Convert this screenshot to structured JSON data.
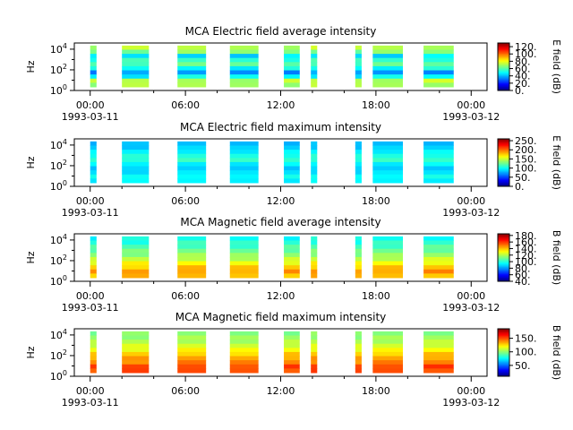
{
  "chart_data": [
    {
      "type": "heatmap",
      "title": "MCA  Electric field average intensity",
      "ylabel": "Hz",
      "y_ticks": [
        {
          "base": "10",
          "exp": "0"
        },
        {
          "base": "10",
          "exp": "2"
        },
        {
          "base": "10",
          "exp": "4"
        }
      ],
      "y_log_range": [
        0,
        4.6
      ],
      "x_range_hours": [
        -1,
        25
      ],
      "x_ticks": [
        {
          "hours": 0,
          "label": "00:00",
          "date": "1993-03-11"
        },
        {
          "hours": 6,
          "label": "06:00",
          "date": ""
        },
        {
          "hours": 12,
          "label": "12:00",
          "date": ""
        },
        {
          "hours": 18,
          "label": "18:00",
          "date": ""
        },
        {
          "hours": 24,
          "label": "00:00",
          "date": "1993-03-12"
        }
      ],
      "colorbar": {
        "label": "E field (dB)",
        "range": [
          0,
          130
        ],
        "ticks": [
          0,
          20,
          40,
          60,
          80,
          100,
          120
        ],
        "tick_labels": [
          "0.",
          "20.",
          "40.",
          "60.",
          "80.",
          "100.",
          "120."
        ]
      },
      "segments_hours": [
        [
          0.0,
          0.4
        ],
        [
          2.0,
          3.7
        ],
        [
          5.5,
          7.3
        ],
        [
          8.8,
          10.6
        ],
        [
          12.2,
          13.2
        ],
        [
          13.9,
          14.3
        ],
        [
          16.7,
          17.1
        ],
        [
          17.8,
          19.7
        ],
        [
          21.0,
          22.9
        ]
      ],
      "band_db": [
        70,
        72,
        48,
        35,
        50,
        60,
        55,
        45,
        65,
        72
      ],
      "dense_band_levels": 10
    },
    {
      "type": "heatmap",
      "title": "MCA  Electric field maximum intensity",
      "ylabel": "Hz",
      "y_ticks": [
        {
          "base": "10",
          "exp": "0"
        },
        {
          "base": "10",
          "exp": "2"
        },
        {
          "base": "10",
          "exp": "4"
        }
      ],
      "y_log_range": [
        0,
        4.6
      ],
      "x_range_hours": [
        -1,
        25
      ],
      "x_ticks": [
        {
          "hours": 0,
          "label": "00:00",
          "date": "1993-03-11"
        },
        {
          "hours": 6,
          "label": "06:00",
          "date": ""
        },
        {
          "hours": 12,
          "label": "12:00",
          "date": ""
        },
        {
          "hours": 18,
          "label": "18:00",
          "date": ""
        },
        {
          "hours": 24,
          "label": "00:00",
          "date": "1993-03-12"
        }
      ],
      "colorbar": {
        "label": "E field (dB)",
        "range": [
          0,
          260
        ],
        "ticks": [
          0,
          50,
          100,
          150,
          200,
          250
        ],
        "tick_labels": [
          "0.",
          "50.",
          "100.",
          "150.",
          "200.",
          "250."
        ]
      },
      "segments_hours": [
        [
          0.0,
          0.4
        ],
        [
          2.0,
          3.7
        ],
        [
          5.5,
          7.3
        ],
        [
          8.8,
          10.6
        ],
        [
          12.2,
          13.2
        ],
        [
          13.9,
          14.3
        ],
        [
          16.7,
          17.1
        ],
        [
          17.8,
          19.7
        ],
        [
          21.0,
          22.9
        ]
      ],
      "band_db": [
        95,
        100,
        90,
        85,
        95,
        110,
        105,
        95,
        85,
        80
      ],
      "dense_band_levels": 10
    },
    {
      "type": "heatmap",
      "title": "MCA  Magnetic field average intensity",
      "ylabel": "Hz",
      "y_ticks": [
        {
          "base": "10",
          "exp": "0"
        },
        {
          "base": "10",
          "exp": "2"
        },
        {
          "base": "10",
          "exp": "4"
        }
      ],
      "y_log_range": [
        0,
        4.6
      ],
      "x_range_hours": [
        -1,
        25
      ],
      "x_ticks": [
        {
          "hours": 0,
          "label": "00:00",
          "date": "1993-03-11"
        },
        {
          "hours": 6,
          "label": "06:00",
          "date": ""
        },
        {
          "hours": 12,
          "label": "12:00",
          "date": ""
        },
        {
          "hours": 18,
          "label": "18:00",
          "date": ""
        },
        {
          "hours": 24,
          "label": "00:00",
          "date": "1993-03-12"
        }
      ],
      "colorbar": {
        "label": "B field (dB)",
        "range": [
          40,
          185
        ],
        "ticks": [
          40,
          60,
          80,
          100,
          120,
          140,
          160,
          180
        ],
        "tick_labels": [
          "40.",
          "60.",
          "80.",
          "100.",
          "120.",
          "140.",
          "160.",
          "180."
        ]
      },
      "segments_hours": [
        [
          0.0,
          0.4
        ],
        [
          2.0,
          3.7
        ],
        [
          5.5,
          7.3
        ],
        [
          8.8,
          10.6
        ],
        [
          12.2,
          13.2
        ],
        [
          13.9,
          14.3
        ],
        [
          16.7,
          17.1
        ],
        [
          17.8,
          19.7
        ],
        [
          21.0,
          22.9
        ]
      ],
      "band_db": [
        140,
        145,
        138,
        130,
        122,
        115,
        110,
        105,
        100,
        96
      ],
      "dense_band_levels": 10
    },
    {
      "type": "heatmap",
      "title": "MCA  Magnetic field maximum intensity",
      "ylabel": "Hz",
      "y_ticks": [
        {
          "base": "10",
          "exp": "0"
        },
        {
          "base": "10",
          "exp": "2"
        },
        {
          "base": "10",
          "exp": "4"
        }
      ],
      "y_log_range": [
        0,
        4.6
      ],
      "x_range_hours": [
        -1,
        25
      ],
      "x_ticks": [
        {
          "hours": 0,
          "label": "00:00",
          "date": "1993-03-11"
        },
        {
          "hours": 6,
          "label": "06:00",
          "date": ""
        },
        {
          "hours": 12,
          "label": "12:00",
          "date": ""
        },
        {
          "hours": 18,
          "label": "18:00",
          "date": ""
        },
        {
          "hours": 24,
          "label": "00:00",
          "date": "1993-03-12"
        }
      ],
      "colorbar": {
        "label": "B field (dB)",
        "range": [
          10,
          185
        ],
        "ticks": [
          50,
          100,
          150
        ],
        "tick_labels": [
          "50.",
          "100.",
          "150."
        ]
      },
      "segments_hours": [
        [
          0.0,
          0.4
        ],
        [
          2.0,
          3.7
        ],
        [
          5.5,
          7.3
        ],
        [
          8.8,
          10.6
        ],
        [
          12.2,
          13.2
        ],
        [
          13.9,
          14.3
        ],
        [
          16.7,
          17.1
        ],
        [
          17.8,
          19.7
        ],
        [
          21.0,
          22.9
        ]
      ],
      "band_db": [
        150,
        152,
        140,
        135,
        128,
        118,
        112,
        106,
        102,
        98
      ],
      "dense_band_levels": 10
    }
  ]
}
